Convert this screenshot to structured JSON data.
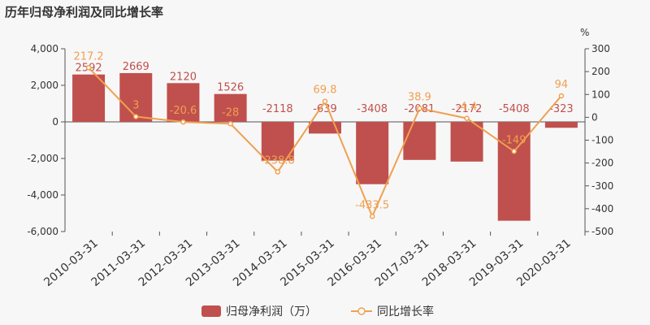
{
  "chart_data": {
    "type": "bar",
    "title": "历年归母净利润及同比增长率",
    "categories": [
      "2010-03-31",
      "2011-03-31",
      "2012-03-31",
      "2013-03-31",
      "2014-03-31",
      "2015-03-31",
      "2016-03-31",
      "2017-03-31",
      "2018-03-31",
      "2019-03-31",
      "2020-03-31"
    ],
    "series": [
      {
        "name": "归母净利润（万）",
        "type": "bar",
        "axis": "left",
        "color": "#c0504d",
        "values": [
          2592,
          2669,
          2120,
          1526,
          -2118,
          -639,
          -3408,
          -2081,
          -2172,
          -5408,
          -323
        ],
        "labels": [
          "2592",
          "2669",
          "2120",
          "1526",
          "-2118",
          "-639",
          "-3408",
          "-2081",
          "-2172",
          "-5408",
          "-323"
        ]
      },
      {
        "name": "同比增长率",
        "type": "line",
        "axis": "right",
        "color": "#f0a050",
        "values": [
          217.2,
          3,
          -20.6,
          -28,
          -238.8,
          69.8,
          -433.5,
          38.9,
          -4.4,
          -149,
          94
        ],
        "labels": [
          "217.2",
          "3",
          "-20.6",
          "-28",
          "-238.8",
          "69.8",
          "-433.5",
          "38.9",
          "-4.4",
          "-149",
          "94"
        ]
      }
    ],
    "ylim_left": [
      -6000,
      4000
    ],
    "yticks_left": [
      "4,000",
      "2,000",
      "0",
      "-2,000",
      "-4,000",
      "-6,000"
    ],
    "ylim_right": [
      -500,
      300
    ],
    "yticks_right": [
      "300",
      "200",
      "100",
      "0",
      "-100",
      "-200",
      "-300",
      "-400",
      "-500"
    ],
    "right_unit": "%",
    "grid": false,
    "legend_position": "bottom"
  }
}
